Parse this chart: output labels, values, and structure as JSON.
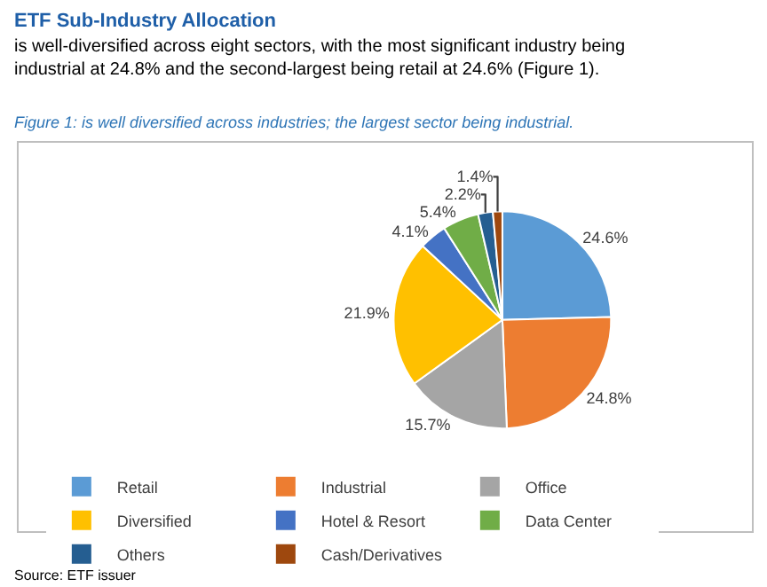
{
  "chart_data": {
    "type": "pie",
    "title": "ETF Sub-Industry Allocation",
    "subtitle": "is well-diversified across eight sectors, with the most significant industry being industrial at 24.8% and the second-largest being retail at 24.6% (Figure 1).",
    "annotations": [
      "Figure 1: is well diversified across industries; the largest sector being industrial.",
      "Source: ETF issuer"
    ],
    "categories": [
      "Retail",
      "Industrial",
      "Office",
      "Diversified",
      "Hotel & Resort",
      "Data Center",
      "Others",
      "Cash/Derivatives"
    ],
    "values": [
      24.6,
      24.8,
      15.7,
      21.9,
      4.1,
      5.4,
      2.2,
      1.4
    ],
    "colors": [
      "#5b9bd5",
      "#ed7d31",
      "#a5a5a5",
      "#ffc000",
      "#4472c4",
      "#70ad47",
      "#255e91",
      "#9e480e"
    ],
    "value_labels": [
      "24.6%",
      "24.8%",
      "15.7%",
      "21.9%",
      "4.1%",
      "5.4%",
      "2.2%",
      "1.4%"
    ],
    "legend": "bottom"
  }
}
